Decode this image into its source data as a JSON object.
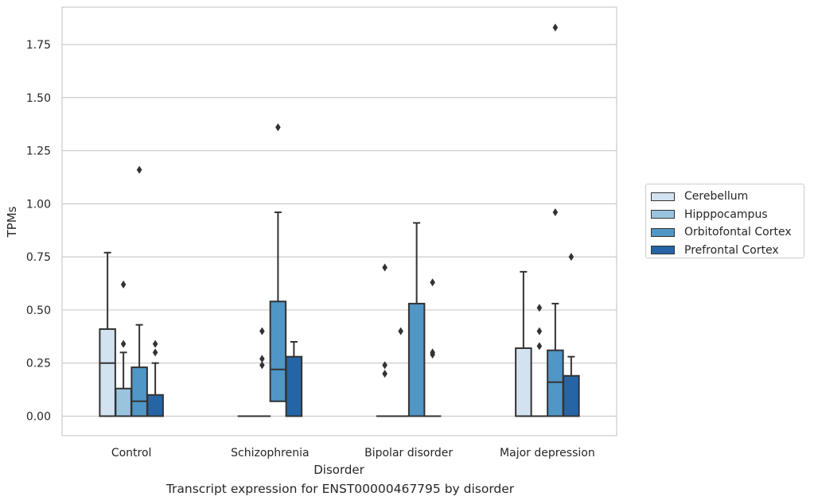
{
  "chart_data": {
    "type": "box",
    "title": "",
    "xlabel": "Disorder",
    "ylabel": "TPMs",
    "caption": "Transcript expression for ENST00000467795 by disorder",
    "categories": [
      "Control",
      "Schizophrenia",
      "Bipolar disorder",
      "Major depression"
    ],
    "ylim": [
      -0.09,
      1.92
    ],
    "yticks": [
      "0.00",
      "0.25",
      "0.50",
      "0.75",
      "1.00",
      "1.25",
      "1.50",
      "1.75"
    ],
    "grid": true,
    "legend_position": "right",
    "series": [
      {
        "name": "Cerebellum",
        "color": "#d2e2f0",
        "boxes": [
          {
            "q1": 0,
            "median": 0.25,
            "q3": 0.41,
            "whisker_low": 0,
            "whisker_high": 0.77,
            "outliers": []
          },
          {
            "q1": 0,
            "median": 0,
            "q3": 0,
            "whisker_low": 0,
            "whisker_high": 0,
            "outliers": []
          },
          {
            "q1": 0,
            "median": 0,
            "q3": 0,
            "whisker_low": 0,
            "whisker_high": 0,
            "outliers": [
              0.7,
              0.24,
              0.2
            ]
          },
          {
            "q1": 0,
            "median": 0,
            "q3": 0.32,
            "whisker_low": 0,
            "whisker_high": 0.68,
            "outliers": []
          }
        ]
      },
      {
        "name": "Hipppocampus",
        "color": "#9ac4de",
        "boxes": [
          {
            "q1": 0,
            "median": 0,
            "q3": 0.13,
            "whisker_low": 0,
            "whisker_high": 0.3,
            "outliers": [
              0.62,
              0.34
            ]
          },
          {
            "q1": 0,
            "median": 0,
            "q3": 0,
            "whisker_low": 0,
            "whisker_high": 0,
            "outliers": [
              0.4,
              0.27,
              0.24
            ]
          },
          {
            "q1": 0,
            "median": 0,
            "q3": 0,
            "whisker_low": 0,
            "whisker_high": 0,
            "outliers": [
              0.4
            ]
          },
          {
            "q1": 0,
            "median": 0,
            "q3": 0,
            "whisker_low": 0,
            "whisker_high": 0,
            "outliers": [
              0.51,
              0.4,
              0.33
            ]
          }
        ]
      },
      {
        "name": "Orbitofontal Cortex",
        "color": "#5096c6",
        "boxes": [
          {
            "q1": 0,
            "median": 0.07,
            "q3": 0.23,
            "whisker_low": 0,
            "whisker_high": 0.43,
            "outliers": [
              1.16
            ]
          },
          {
            "q1": 0.07,
            "median": 0.22,
            "q3": 0.54,
            "whisker_low": 0,
            "whisker_high": 0.96,
            "outliers": [
              1.36
            ]
          },
          {
            "q1": 0,
            "median": 0,
            "q3": 0.53,
            "whisker_low": 0,
            "whisker_high": 0.91,
            "outliers": []
          },
          {
            "q1": 0,
            "median": 0.16,
            "q3": 0.31,
            "whisker_low": 0,
            "whisker_high": 0.53,
            "outliers": [
              1.83,
              0.96
            ]
          }
        ]
      },
      {
        "name": "Prefrontal Cortex",
        "color": "#2565a6",
        "boxes": [
          {
            "q1": 0,
            "median": 0,
            "q3": 0.1,
            "whisker_low": 0,
            "whisker_high": 0.25,
            "outliers": [
              0.34,
              0.3
            ]
          },
          {
            "q1": 0,
            "median": 0,
            "q3": 0.28,
            "whisker_low": 0,
            "whisker_high": 0.35,
            "outliers": []
          },
          {
            "q1": 0,
            "median": 0,
            "q3": 0,
            "whisker_low": 0,
            "whisker_high": 0,
            "outliers": [
              0.63,
              0.3,
              0.29
            ]
          },
          {
            "q1": 0,
            "median": 0,
            "q3": 0.19,
            "whisker_low": 0,
            "whisker_high": 0.28,
            "outliers": [
              0.75
            ]
          }
        ]
      }
    ]
  }
}
